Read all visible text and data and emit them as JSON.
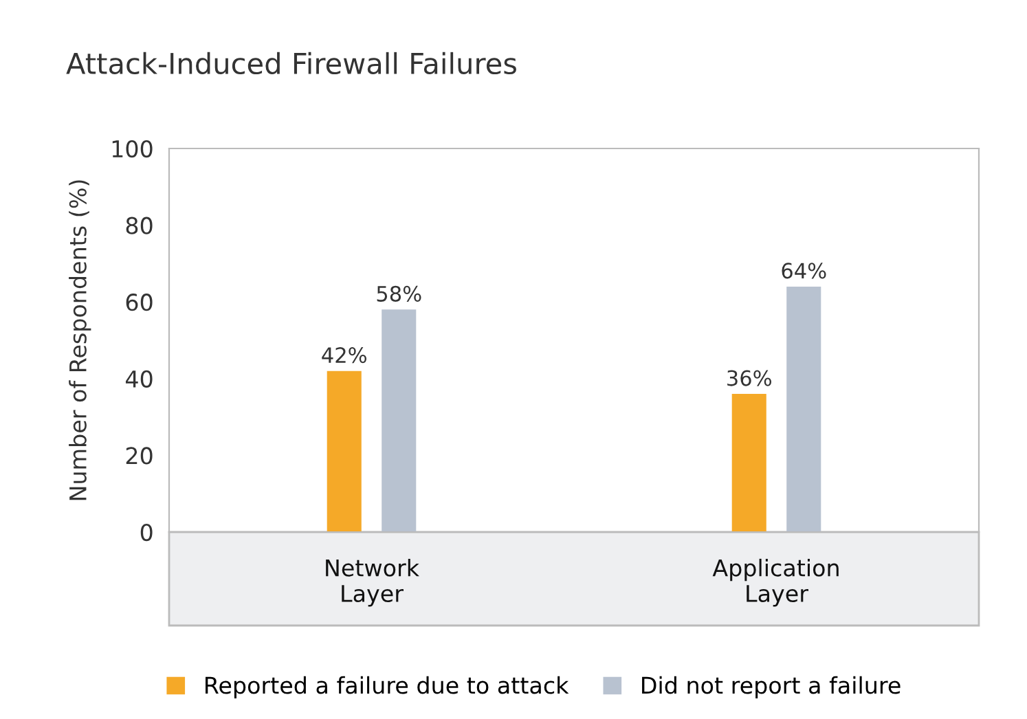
{
  "chart_data": {
    "type": "bar",
    "title": "Attack-Induced Firewall Failures",
    "ylabel": "Number of Respondents (%)",
    "categories": [
      "Network\nLayer",
      "Application\nLayer"
    ],
    "series": [
      {
        "name": "Reported a failure due to attack",
        "color": "#f5a928",
        "values": [
          42,
          36
        ],
        "value_labels": [
          "42%",
          "36%"
        ]
      },
      {
        "name": "Did not report a failure",
        "color": "#b8c2d0",
        "values": [
          58,
          64
        ],
        "value_labels": [
          "58%",
          "64%"
        ]
      }
    ],
    "ylim": [
      0,
      100
    ],
    "yticks": [
      0,
      20,
      40,
      60,
      80,
      100
    ],
    "grid": false,
    "legend": "bottom"
  }
}
